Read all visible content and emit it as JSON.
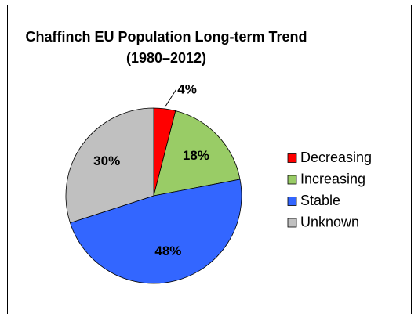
{
  "chart_data": {
    "type": "pie",
    "title": "Chaffinch EU Population Long-term Trend",
    "subtitle": "(1980–2012)",
    "categories": [
      "Decreasing",
      "Increasing",
      "Stable",
      "Unknown"
    ],
    "values": [
      4,
      18,
      48,
      30
    ],
    "value_labels": [
      "4%",
      "18%",
      "48%",
      "30%"
    ],
    "colors": [
      "#ff0000",
      "#99cc66",
      "#3366ff",
      "#c0c0c0"
    ],
    "legend": "right"
  }
}
